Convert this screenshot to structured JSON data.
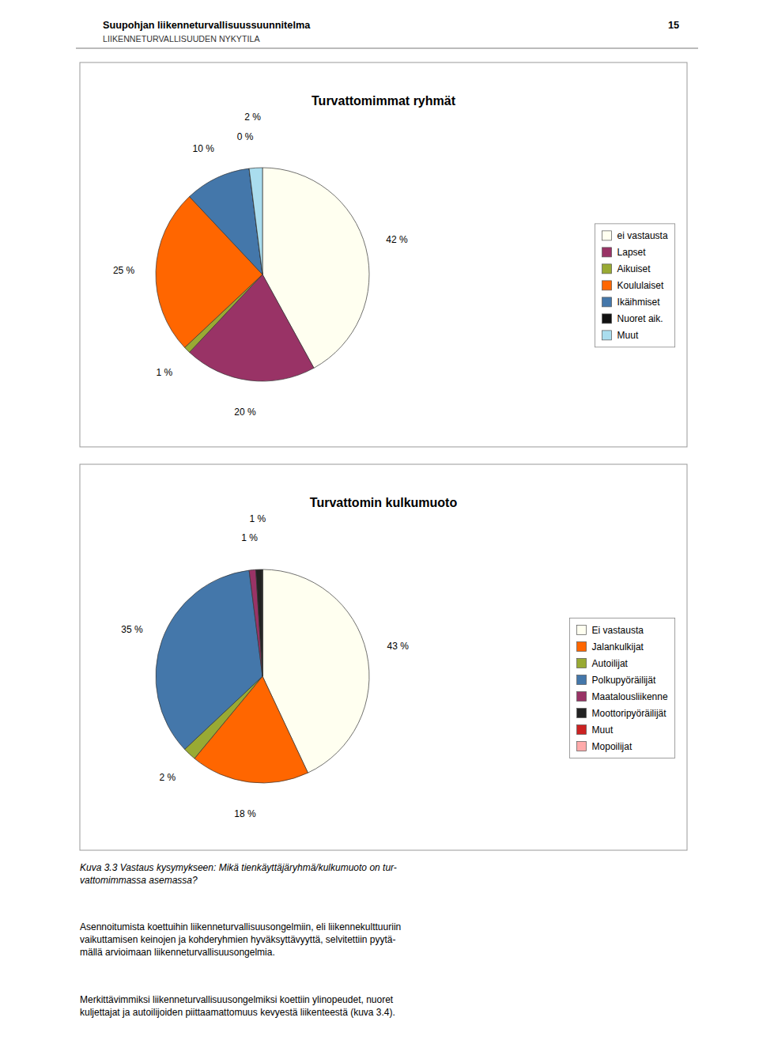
{
  "header_left": "Suupohjan liikenneturvallisuussuunnitelma",
  "header_right": "15",
  "header_sub": "LIIKENNETURVALLISUUDEN NYKYTILA",
  "chart_data": [
    {
      "type": "pie",
      "title": "Turvattomimmat ryhmät",
      "categories": [
        "ei vastausta",
        "Lapset",
        "Aikuiset",
        "Koululaiset",
        "Ikäihmiset",
        "Nuoret aik.",
        "Muut"
      ],
      "values": [
        42,
        20,
        1,
        25,
        10,
        0,
        2
      ],
      "value_labels": [
        "42 %",
        "20 %",
        "1 %",
        "25 %",
        "10 %",
        "0 %",
        "2 %"
      ],
      "colors": [
        "#FFFFF0",
        "#993366",
        "#99AA33",
        "#FF6600",
        "#4477AA",
        "#111111",
        "#AADDEE"
      ],
      "data_labels": true,
      "legend": "right"
    },
    {
      "type": "pie",
      "title": "Turvattomin kulkumuoto",
      "categories": [
        "Ei vastausta",
        "Jalankulkijat",
        "Autoilijat",
        "Polkupyöräilijät",
        "Maatalousliikenne",
        "Moottoripyöräilijät",
        "Muut",
        "Mopoilijat"
      ],
      "values": [
        43,
        18,
        2,
        35,
        1,
        1,
        0,
        0
      ],
      "value_labels": [
        "43 %",
        "18 %",
        "2 %",
        "35 %",
        "1 %",
        "1 %",
        null,
        null
      ],
      "colors": [
        "#FFFFF0",
        "#FF6600",
        "#99AA33",
        "#4477AA",
        "#993366",
        "#222222",
        "#CC2222",
        "#FFAAAA"
      ],
      "data_labels": true,
      "legend": "right"
    }
  ],
  "caption": "Kuva 3.3 Vastaus kysymykseen: Mikä tienkäyttäjäryhmä/kulkumuoto on tur-\nvattomimmassa asemassa?",
  "paragraphs": [
    "Asennoitumista koettuihin liikenneturvallisuusongelmiin, eli liikennekulttuuriin\nvaikuttamisen keinojen ja kohderyhmien hyväksyttävyyttä, selvitettiin pyytä-\nmällä arvioimaan liikenneturvallisuusongelmia.",
    "Merkittävimmiksi liikenneturvallisuusongelmiksi koettiin ylinopeudet, nuoret\nkuljettajat ja autoilijoiden piittaamattomuus kevyestä liikenteestä (kuva 3.4)."
  ]
}
